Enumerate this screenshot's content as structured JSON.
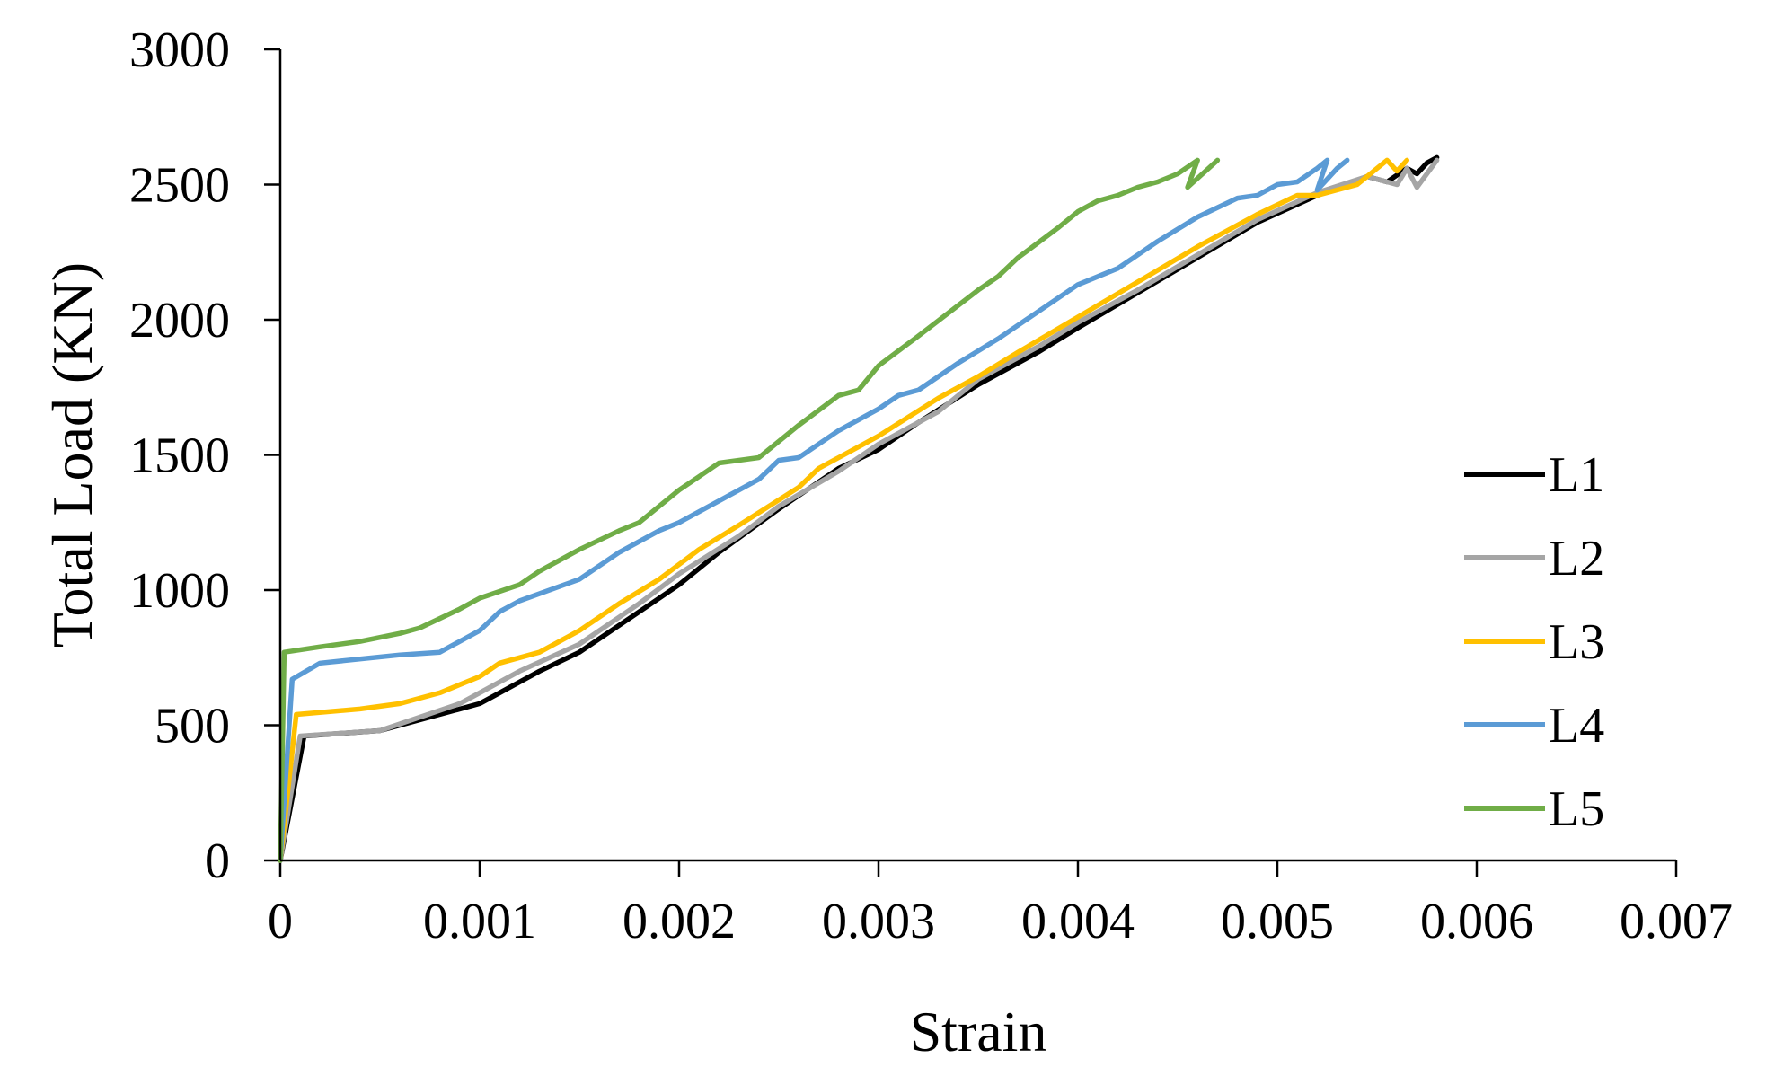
{
  "chart_data": {
    "type": "line",
    "title": "",
    "xlabel": "Strain",
    "ylabel": "Total Load (KN)",
    "xlim": [
      0,
      0.007
    ],
    "ylim": [
      0,
      3000
    ],
    "xticks": [
      0,
      0.001,
      0.002,
      0.003,
      0.004,
      0.005,
      0.006,
      0.007
    ],
    "yticks": [
      0,
      500,
      1000,
      1500,
      2000,
      2500,
      3000
    ],
    "xtick_labels": [
      "0",
      "0.001",
      "0.002",
      "0.003",
      "0.004",
      "0.005",
      "0.006",
      "0.007"
    ],
    "ytick_labels": [
      "0",
      "500",
      "1000",
      "1500",
      "2000",
      "2500",
      "3000"
    ],
    "grid": false,
    "legend_position": "right",
    "series": [
      {
        "name": "L1",
        "color": "#000000",
        "points": [
          [
            0,
            0
          ],
          [
            0.00012,
            460
          ],
          [
            0.0005,
            480
          ],
          [
            0.0007,
            520
          ],
          [
            0.001,
            580
          ],
          [
            0.0011,
            620
          ],
          [
            0.0013,
            700
          ],
          [
            0.0015,
            770
          ],
          [
            0.0018,
            920
          ],
          [
            0.002,
            1020
          ],
          [
            0.0022,
            1140
          ],
          [
            0.0025,
            1300
          ],
          [
            0.0028,
            1450
          ],
          [
            0.003,
            1520
          ],
          [
            0.0032,
            1620
          ],
          [
            0.0035,
            1760
          ],
          [
            0.0038,
            1880
          ],
          [
            0.004,
            1970
          ],
          [
            0.0043,
            2100
          ],
          [
            0.0046,
            2230
          ],
          [
            0.0049,
            2360
          ],
          [
            0.0052,
            2460
          ],
          [
            0.00545,
            2530
          ],
          [
            0.00555,
            2510
          ],
          [
            0.00565,
            2560
          ],
          [
            0.0057,
            2540
          ],
          [
            0.00575,
            2580
          ],
          [
            0.0058,
            2600
          ]
        ]
      },
      {
        "name": "L2",
        "color": "#A5A5A5",
        "points": [
          [
            0,
            0
          ],
          [
            0.0001,
            460
          ],
          [
            0.0005,
            480
          ],
          [
            0.0007,
            530
          ],
          [
            0.0009,
            580
          ],
          [
            0.001,
            620
          ],
          [
            0.0012,
            700
          ],
          [
            0.0015,
            800
          ],
          [
            0.0018,
            950
          ],
          [
            0.002,
            1060
          ],
          [
            0.0023,
            1200
          ],
          [
            0.0025,
            1310
          ],
          [
            0.0028,
            1440
          ],
          [
            0.003,
            1540
          ],
          [
            0.0033,
            1660
          ],
          [
            0.0035,
            1780
          ],
          [
            0.0038,
            1900
          ],
          [
            0.004,
            1990
          ],
          [
            0.0043,
            2110
          ],
          [
            0.0046,
            2240
          ],
          [
            0.0049,
            2370
          ],
          [
            0.0052,
            2470
          ],
          [
            0.00545,
            2530
          ],
          [
            0.0056,
            2500
          ],
          [
            0.00565,
            2560
          ],
          [
            0.0057,
            2490
          ],
          [
            0.0058,
            2590
          ]
        ]
      },
      {
        "name": "L3",
        "color": "#FFC000",
        "points": [
          [
            0,
            0
          ],
          [
            8e-05,
            540
          ],
          [
            0.0004,
            560
          ],
          [
            0.0006,
            580
          ],
          [
            0.0008,
            620
          ],
          [
            0.001,
            680
          ],
          [
            0.0011,
            730
          ],
          [
            0.0013,
            770
          ],
          [
            0.0015,
            850
          ],
          [
            0.0017,
            950
          ],
          [
            0.0019,
            1040
          ],
          [
            0.0021,
            1150
          ],
          [
            0.0023,
            1240
          ],
          [
            0.0026,
            1380
          ],
          [
            0.0027,
            1450
          ],
          [
            0.0028,
            1490
          ],
          [
            0.003,
            1570
          ],
          [
            0.0033,
            1710
          ],
          [
            0.0035,
            1790
          ],
          [
            0.0037,
            1880
          ],
          [
            0.004,
            2010
          ],
          [
            0.0043,
            2140
          ],
          [
            0.0046,
            2270
          ],
          [
            0.0049,
            2390
          ],
          [
            0.0051,
            2460
          ],
          [
            0.0052,
            2460
          ],
          [
            0.0054,
            2500
          ],
          [
            0.0055,
            2560
          ],
          [
            0.00555,
            2590
          ],
          [
            0.0056,
            2550
          ],
          [
            0.00565,
            2590
          ]
        ]
      },
      {
        "name": "L4",
        "color": "#5B9BD5",
        "points": [
          [
            0,
            0
          ],
          [
            6e-05,
            670
          ],
          [
            0.0002,
            730
          ],
          [
            0.0006,
            760
          ],
          [
            0.0008,
            770
          ],
          [
            0.001,
            850
          ],
          [
            0.0011,
            920
          ],
          [
            0.0012,
            960
          ],
          [
            0.0015,
            1040
          ],
          [
            0.0017,
            1140
          ],
          [
            0.0019,
            1220
          ],
          [
            0.002,
            1250
          ],
          [
            0.0022,
            1330
          ],
          [
            0.0024,
            1410
          ],
          [
            0.0025,
            1480
          ],
          [
            0.0026,
            1490
          ],
          [
            0.0028,
            1590
          ],
          [
            0.003,
            1670
          ],
          [
            0.0031,
            1720
          ],
          [
            0.0032,
            1740
          ],
          [
            0.0034,
            1840
          ],
          [
            0.0036,
            1930
          ],
          [
            0.0038,
            2030
          ],
          [
            0.004,
            2130
          ],
          [
            0.0042,
            2190
          ],
          [
            0.0044,
            2290
          ],
          [
            0.0046,
            2380
          ],
          [
            0.0048,
            2450
          ],
          [
            0.0049,
            2460
          ],
          [
            0.005,
            2500
          ],
          [
            0.0051,
            2510
          ],
          [
            0.0052,
            2560
          ],
          [
            0.00525,
            2590
          ],
          [
            0.0052,
            2480
          ],
          [
            0.0053,
            2560
          ],
          [
            0.00535,
            2590
          ]
        ]
      },
      {
        "name": "L5",
        "color": "#70AD47",
        "points": [
          [
            0,
            0
          ],
          [
            2e-05,
            770
          ],
          [
            0.0002,
            790
          ],
          [
            0.0004,
            810
          ],
          [
            0.0006,
            840
          ],
          [
            0.0007,
            860
          ],
          [
            0.0009,
            930
          ],
          [
            0.001,
            970
          ],
          [
            0.0012,
            1020
          ],
          [
            0.0013,
            1070
          ],
          [
            0.0015,
            1150
          ],
          [
            0.0017,
            1220
          ],
          [
            0.0018,
            1250
          ],
          [
            0.002,
            1370
          ],
          [
            0.0021,
            1420
          ],
          [
            0.0022,
            1470
          ],
          [
            0.0024,
            1490
          ],
          [
            0.0026,
            1610
          ],
          [
            0.0028,
            1720
          ],
          [
            0.0029,
            1740
          ],
          [
            0.003,
            1830
          ],
          [
            0.0032,
            1940
          ],
          [
            0.0035,
            2110
          ],
          [
            0.0036,
            2160
          ],
          [
            0.0037,
            2230
          ],
          [
            0.0039,
            2340
          ],
          [
            0.004,
            2400
          ],
          [
            0.0041,
            2440
          ],
          [
            0.0042,
            2460
          ],
          [
            0.0043,
            2490
          ],
          [
            0.0044,
            2510
          ],
          [
            0.0045,
            2540
          ],
          [
            0.0046,
            2590
          ],
          [
            0.00455,
            2490
          ],
          [
            0.0047,
            2590
          ]
        ]
      }
    ]
  }
}
